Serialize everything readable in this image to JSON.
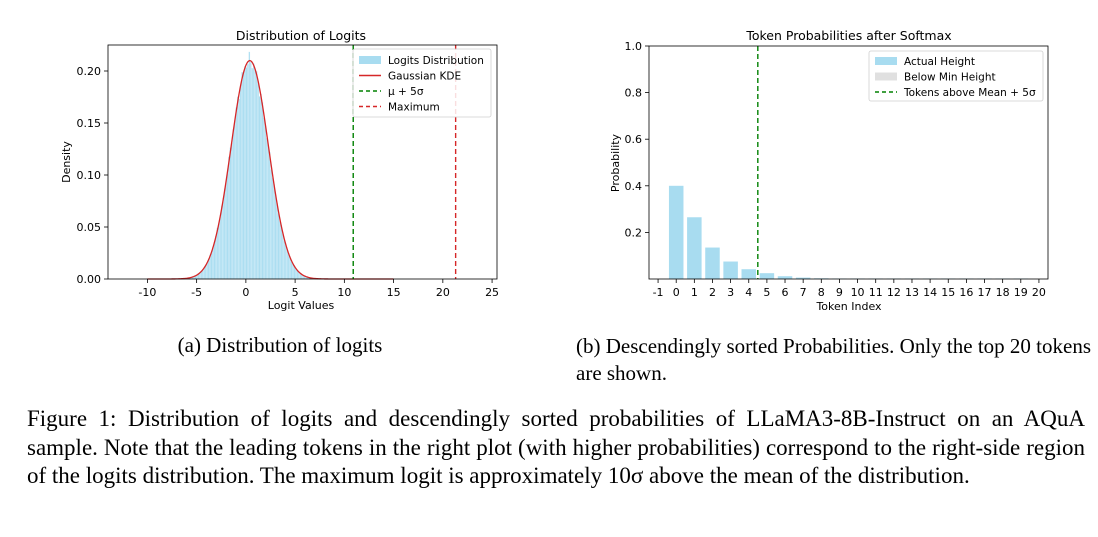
{
  "chart_data": [
    {
      "type": "histogram",
      "title": "Distribution of Logits",
      "xlabel": "Logit Values",
      "ylabel": "Density",
      "xlim": [
        -14,
        25.5
      ],
      "ylim": [
        0,
        0.225
      ],
      "xticks": [
        -10,
        -5,
        0,
        5,
        10,
        15,
        20,
        25
      ],
      "yticks": [
        0.0,
        0.05,
        0.1,
        0.15,
        0.2
      ],
      "ytick_labels": [
        "0.00",
        "0.05",
        "0.10",
        "0.15",
        "0.20"
      ],
      "kde": {
        "mean": 0.4,
        "std": 1.9,
        "peak": 0.21
      },
      "hist_range": [
        -6.5,
        6.8
      ],
      "hist_bins": 90,
      "vlines": [
        {
          "name": "μ + 5σ",
          "x": 10.9,
          "color": "#008000",
          "style": "dashed"
        },
        {
          "name": "Maximum",
          "x": 21.3,
          "color": "#d62728",
          "style": "dashed"
        }
      ],
      "legend": {
        "placement": "top-right",
        "entries": [
          {
            "label": "Logits Distribution",
            "color": "#a8dcf0",
            "kind": "patch"
          },
          {
            "label": "Gaussian KDE",
            "color": "#d62728",
            "kind": "line"
          },
          {
            "label": "μ + 5σ",
            "color": "#008000",
            "kind": "dashed"
          },
          {
            "label": "Maximum",
            "color": "#d62728",
            "kind": "dashed"
          }
        ]
      },
      "colors": {
        "bars": "#a8dcf0",
        "kde": "#d62728"
      }
    },
    {
      "type": "bar",
      "title": "Token Probabilities after Softmax",
      "xlabel": "Token Index",
      "ylabel": "Probability",
      "xlim": [
        -1.5,
        20.5
      ],
      "ylim": [
        0,
        1.0
      ],
      "xticks": [
        -1,
        0,
        1,
        2,
        3,
        4,
        5,
        6,
        7,
        8,
        9,
        10,
        11,
        12,
        13,
        14,
        15,
        16,
        17,
        18,
        19,
        20
      ],
      "yticks": [
        0.2,
        0.4,
        0.6,
        0.8,
        1.0
      ],
      "ytick_labels": [
        "0.2",
        "0.4",
        "0.6",
        "0.8",
        "1.0"
      ],
      "x": [
        0,
        1,
        2,
        3,
        4,
        5,
        6,
        7,
        8,
        9,
        10,
        11,
        12,
        13,
        14,
        15,
        16,
        17,
        18,
        19
      ],
      "values": [
        0.4,
        0.265,
        0.135,
        0.075,
        0.042,
        0.025,
        0.012,
        0.006,
        0.003,
        0.002,
        0.001,
        0.001,
        0.0006,
        0.0004,
        0.0003,
        0.0002,
        0.0002,
        0.0001,
        0.0001,
        0.0001
      ],
      "vline": {
        "x": 4.5,
        "color": "#008000",
        "style": "dashed"
      },
      "legend": {
        "placement": "top-right",
        "entries": [
          {
            "label": "Actual Height",
            "color": "#a8dcf0",
            "kind": "patch"
          },
          {
            "label": "Below Min Height",
            "color": "#e0e0e0",
            "kind": "patch"
          },
          {
            "label": "Tokens above Mean + 5σ",
            "color": "#008000",
            "kind": "dashed"
          }
        ]
      },
      "colors": {
        "bars": "#a8dcf0"
      }
    }
  ],
  "captions": {
    "a": "(a) Distribution of logits",
    "b": "(b) Descendingly sorted Probabilities. Only the top 20 tokens are shown.",
    "figure": "Figure 1: Distribution of logits and descendingly sorted probabilities of LLaMA3-8B-Instruct on an AQuA sample. Note that the leading tokens in the right plot (with higher probabilities) correspond to the right-side region of the logits distribution. The maximum logit is approximately 10σ above the mean of the distribution."
  }
}
